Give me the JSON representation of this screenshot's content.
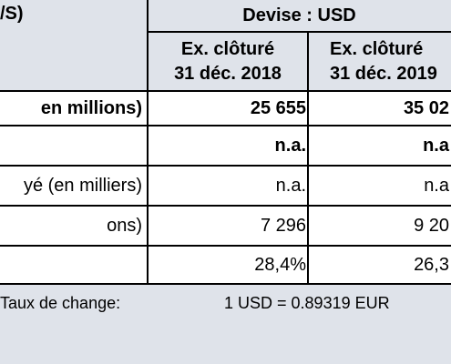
{
  "header": {
    "left_label": "/S)",
    "currency": "Devise : USD",
    "col1_line1": "Ex. clôturé",
    "col1_line2": "31 déc. 2018",
    "col2_line1": "Ex. clôturé",
    "col2_line2": "31 déc. 2019"
  },
  "rows": [
    {
      "label": "en millions)",
      "v2018": "25 655",
      "v2019": "35 02",
      "bold": true
    },
    {
      "label": "",
      "v2018": "n.a.",
      "v2019": "n.a",
      "bold": true
    },
    {
      "label": "yé (en milliers)",
      "v2018": "n.a.",
      "v2019": "n.a",
      "bold": false
    },
    {
      "label": "ons)",
      "v2018": "7 296",
      "v2019": "9 20",
      "bold": false
    },
    {
      "label": "",
      "v2018": "28,4%",
      "v2019": "26,3",
      "bold": false
    }
  ],
  "footer": {
    "exchange_label": "Taux de change:",
    "exchange_value": "1 USD =  0.89319 EUR"
  }
}
